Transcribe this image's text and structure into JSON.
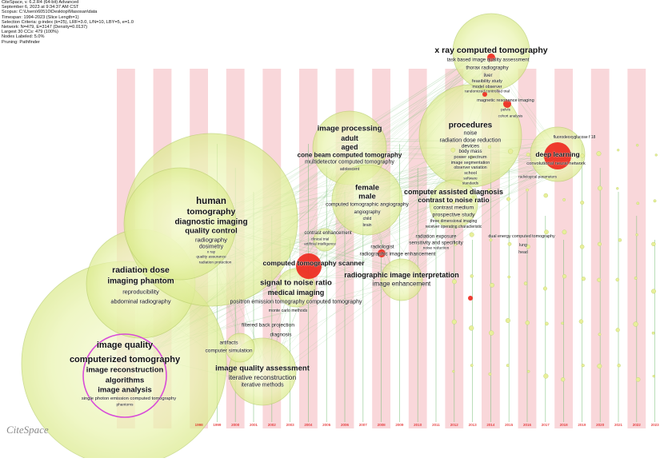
{
  "meta": [
    "CiteSpace, v. 6.2.R4 (64-bit) Advanced",
    "September 6, 2023 at 9:34:37 AM CST",
    "Scopus: C:\\Users\\60510\\Desktop\\Masosan\\data",
    "Timespan: 1994-2023 (Slice Length=1)",
    "Selection Criteria: g-index (k=25), LRF=3.0, L/N=10, LBY=5, e=1.0",
    "Network: N=479, E=3147 (Density=0.0137)",
    "Largest 30 CCs: 479 (100%)",
    "Nodes Labeled: 5.0%",
    "Pruning: Pathfinder"
  ],
  "logo": "CiteSpace",
  "years": [
    "1994",
    "1995",
    "1996",
    "1997",
    "1998",
    "1999",
    "2000",
    "2001",
    "2002",
    "2003",
    "2004",
    "2005",
    "2006",
    "2007",
    "2008",
    "2009",
    "2010",
    "2011",
    "2012",
    "2013",
    "2014",
    "2015",
    "2016",
    "2017",
    "2018",
    "2019",
    "2020",
    "2021",
    "2022",
    "2023"
  ],
  "keywords": {
    "k1": "x ray computed tomography",
    "k2": "task based image quality assessment",
    "k3": "thorax radiography",
    "k4": "liver",
    "k5": "feasibility study",
    "k6": "model observer",
    "k7": "randomized controlled trial",
    "k8": "magnetic resonance imaging",
    "k9": "pelvis",
    "k10": "cohort analysis",
    "k11": "procedures",
    "k12": "noise",
    "k13": "radiation dose reduction",
    "k14": "devices",
    "k15": "body mass",
    "k16": "power spectrum",
    "k17": "image segmentation",
    "k18": "observer variation",
    "k19": "school",
    "k20": "software",
    "k21": "standards",
    "k22": "fluorodeoxyglucose f 18",
    "k23": "deep learning",
    "k24": "convolutional neural network",
    "k25": "radiological parameters",
    "k26": "image processing",
    "k27": "adult",
    "k28": "aged",
    "k29": "cone beam computed tomography",
    "k30": "multidetector computed tomography",
    "k31": "adolescent",
    "k32": "female",
    "k33": "male",
    "k34": "computed tomographic angiography",
    "k35": "angiography",
    "k36": "child",
    "k37": "brain",
    "k38": "computer assisted diagnosis",
    "k39": "contrast to noise ratio",
    "k40": "contrast medium",
    "k41": "prospective study",
    "k42": "three dimensional imaging",
    "k43": "receiver operating characteristic",
    "k44": "human",
    "k45": "tomography",
    "k46": "diagnostic imaging",
    "k47": "quality control",
    "k48": "radiography",
    "k49": "dosimetry",
    "k50": "x ray",
    "k51": "quality assurance",
    "k52": "radiation protection",
    "k53": "contrast enhancement",
    "k54": "clinical trial",
    "k55": "artificial intelligence",
    "k56": "radiologist",
    "k57": "radiographic image enhancement",
    "k58": "radiation exposure",
    "k59": "sensitivity and specificity",
    "k60": "noise reduction",
    "k61": "dual energy computed tomography",
    "k62": "lung",
    "k63": "head",
    "k64": "computed tomography scanner",
    "k65": "radiation dose",
    "k66": "imaging phantom",
    "k67": "reproducibility",
    "k68": "abdominal radiography",
    "k69": "signal to noise ratio",
    "k70": "medical imaging",
    "k71": "radiographic image interpretation",
    "k72": "image enhancement",
    "k73": "positron emission tomography computed tomography",
    "k74": "monte carlo methods",
    "k75": "filtered back projection",
    "k76": "diagnosis",
    "k77": "artifacts",
    "k78": "computer simulation",
    "k79": "image quality",
    "k80": "computerized tomography",
    "k81": "image reconstruction",
    "k82": "algorithms",
    "k83": "image analysis",
    "k84": "single photon emission computed tomography",
    "k85": "phantoms",
    "k86": "image quality assessment",
    "k87": "iterative reconstruction",
    "k88": "iterative methods"
  },
  "colors": {
    "stripe": "#f9d7da",
    "halo": "#e9f3a8",
    "halo_edge": "#b9cf6a",
    "node_red": "#ee2a1f",
    "link": "#7cc07a",
    "year_text": "#dd0000",
    "ring": "#d84ad8"
  }
}
